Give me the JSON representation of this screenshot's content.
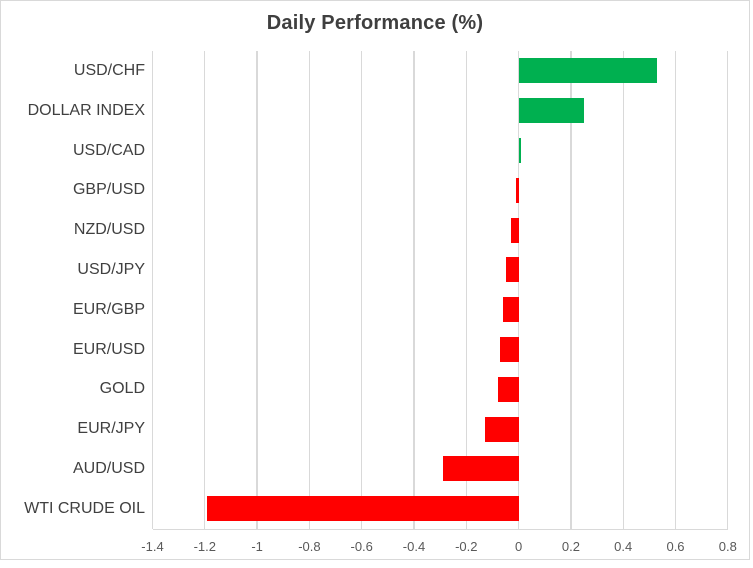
{
  "title": "Daily Performance (%)",
  "colors": {
    "positive_bar": "#00B050",
    "negative_bar": "#FF0000",
    "gridline": "#D9D9D9",
    "frame_border": "#D9D9D9",
    "title_text": "#3F3F3F",
    "category_text": "#404040",
    "tick_text": "#595959"
  },
  "chart_data": {
    "type": "bar",
    "orientation": "horizontal",
    "title": "Daily Performance (%)",
    "categories": [
      "USD/CHF",
      "DOLLAR INDEX",
      "USD/CAD",
      "GBP/USD",
      "NZD/USD",
      "USD/JPY",
      "EUR/GBP",
      "EUR/USD",
      "GOLD",
      "EUR/JPY",
      "AUD/USD",
      "WTI CRUDE OIL"
    ],
    "values": [
      0.53,
      0.25,
      0.01,
      -0.01,
      -0.03,
      -0.05,
      -0.06,
      -0.07,
      -0.08,
      -0.13,
      -0.29,
      -1.19
    ],
    "xlabel": "",
    "ylabel": "",
    "xlim": [
      -1.4,
      0.8
    ],
    "xticks": [
      -1.4,
      -1.2,
      -1,
      -0.8,
      -0.6,
      -0.4,
      -0.2,
      0,
      0.2,
      0.4,
      0.6,
      0.8
    ],
    "xtick_labels": [
      "-1.4",
      "-1.2",
      "-1",
      "-0.8",
      "-0.6",
      "-0.4",
      "-0.2",
      "0",
      "0.2",
      "0.4",
      "0.6",
      "0.8"
    ],
    "grid": true,
    "legend": false
  }
}
